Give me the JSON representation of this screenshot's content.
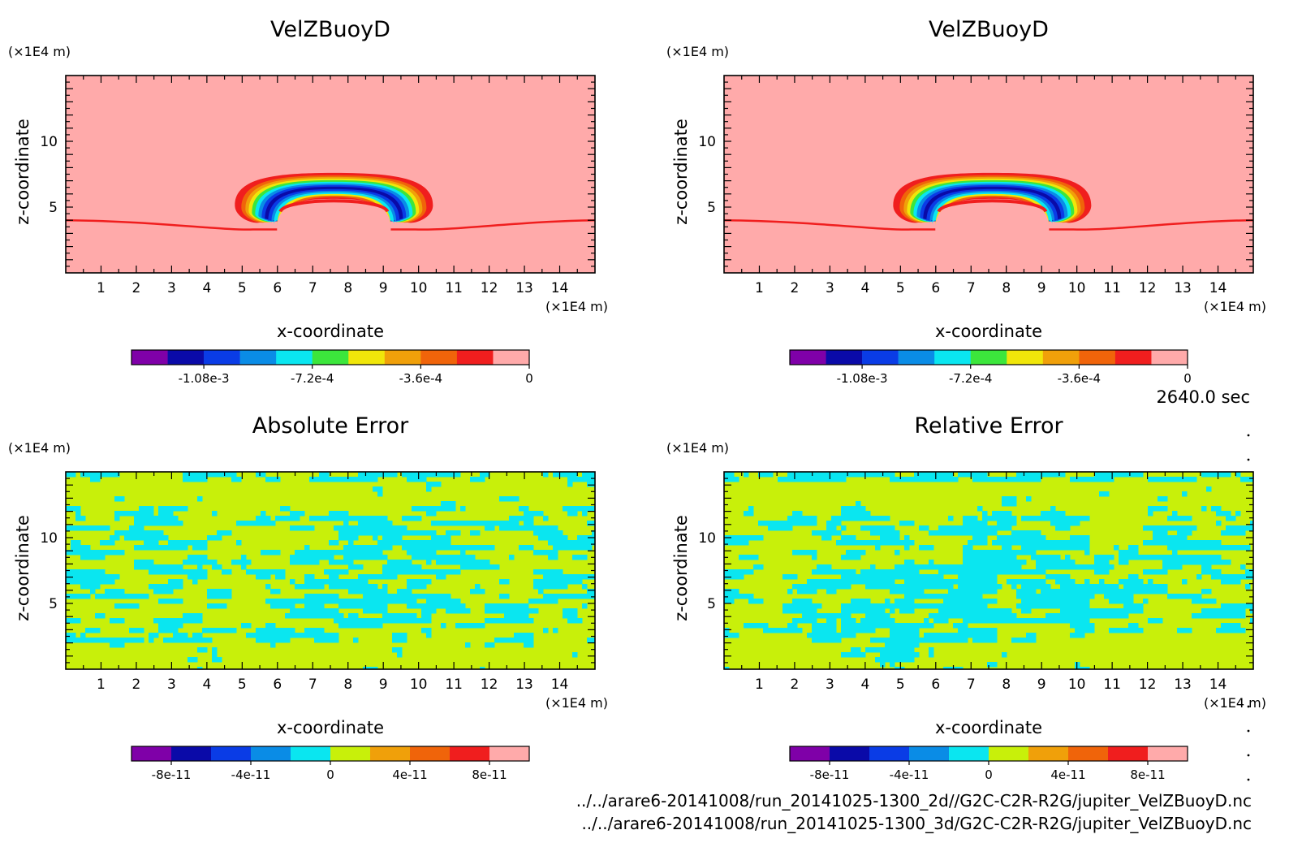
{
  "figure": {
    "time_label": "2640.0 sec",
    "file_line_1": "../../arare6-20141008/run_20141025-1300_2d//G2C-C2R-R2G/jupiter_VelZBuoyD.nc",
    "file_line_2": "../../arare6-20141008/run_20141025-1300_3d/G2C-C2R-R2G/jupiter_VelZBuoyD.nc",
    "colors": {
      "velz_levels": [
        "#7f00a8",
        "#0a0aa8",
        "#0a3ce6",
        "#0a8ce6",
        "#0ae6f0",
        "#3ce63c",
        "#f0e60a",
        "#f0a00a",
        "#f0640a",
        "#f01e1e",
        "#ffaaaa"
      ],
      "err_levels": [
        "#7f00a8",
        "#0a0aa8",
        "#0a3ce6",
        "#0a8ce6",
        "#0ae6f0",
        "#c8f00a",
        "#f0a00a",
        "#f0640a",
        "#f01e1e",
        "#ffaaaa"
      ]
    }
  },
  "chart_data": [
    {
      "type": "heatmap",
      "title": "VelZBuoyD",
      "xlabel": "x-coordinate",
      "ylabel": "z-coordinate",
      "x_unit": "(×1E4 m)",
      "y_unit": "(×1E4 m)",
      "xlim": [
        0,
        15
      ],
      "ylim": [
        0,
        15
      ],
      "x_ticks": [
        "1",
        "2",
        "3",
        "4",
        "5",
        "6",
        "7",
        "8",
        "9",
        "10",
        "11",
        "12",
        "13",
        "14"
      ],
      "y_ticks": [
        "5",
        "10"
      ],
      "colorbar": {
        "ticks": [
          "-1.08e-3",
          "-7.2e-4",
          "-3.6e-4",
          "0"
        ],
        "range": [
          -0.00132,
          0
        ]
      },
      "features": {
        "background": 0,
        "dome_center_x": 7.6,
        "dome_top_z": 7.6,
        "dome_base_z": 3.3,
        "min_value": -0.0012
      }
    },
    {
      "type": "heatmap",
      "title": "VelZBuoyD",
      "xlabel": "x-coordinate",
      "ylabel": "z-coordinate",
      "x_unit": "(×1E4 m)",
      "y_unit": "(×1E4 m)",
      "xlim": [
        0,
        15
      ],
      "ylim": [
        0,
        15
      ],
      "x_ticks": [
        "1",
        "2",
        "3",
        "4",
        "5",
        "6",
        "7",
        "8",
        "9",
        "10",
        "11",
        "12",
        "13",
        "14"
      ],
      "y_ticks": [
        "5",
        "10"
      ],
      "colorbar": {
        "ticks": [
          "-1.08e-3",
          "-7.2e-4",
          "-3.6e-4",
          "0"
        ],
        "range": [
          -0.00132,
          0
        ]
      },
      "features": {
        "background": 0,
        "dome_center_x": 7.6,
        "dome_top_z": 7.6,
        "dome_base_z": 3.3,
        "min_value": -0.0012
      }
    },
    {
      "type": "heatmap",
      "title": "Absolute Error",
      "xlabel": "x-coordinate",
      "ylabel": "z-coordinate",
      "x_unit": "(×1E4 m)",
      "y_unit": "(×1E4 m)",
      "xlim": [
        0,
        15
      ],
      "ylim": [
        0,
        15
      ],
      "x_ticks": [
        "1",
        "2",
        "3",
        "4",
        "5",
        "6",
        "7",
        "8",
        "9",
        "10",
        "11",
        "12",
        "13",
        "14"
      ],
      "y_ticks": [
        "5",
        "10"
      ],
      "colorbar": {
        "ticks": [
          "-8e-11",
          "-4e-11",
          "0",
          "4e-11",
          "8e-11"
        ],
        "range": [
          -1e-10,
          1e-10
        ]
      },
      "features": {
        "dominant_range": [
          0,
          2e-11
        ],
        "secondary_range": [
          -2e-11,
          0
        ]
      }
    },
    {
      "type": "heatmap",
      "title": "Relative Error",
      "xlabel": "x-coordinate",
      "ylabel": "z-coordinate",
      "x_unit": "(×1E4 m)",
      "y_unit": "(×1E4 m)",
      "xlim": [
        0,
        15
      ],
      "ylim": [
        0,
        15
      ],
      "x_ticks": [
        "1",
        "2",
        "3",
        "4",
        "5",
        "6",
        "7",
        "8",
        "9",
        "10",
        "11",
        "12",
        "13",
        "14"
      ],
      "y_ticks": [
        "5",
        "10"
      ],
      "colorbar": {
        "ticks": [
          "-8e-11",
          "-4e-11",
          "0",
          "4e-11",
          "8e-11"
        ],
        "range": [
          -1e-10,
          1e-10
        ]
      },
      "features": {
        "dominant_range": [
          0,
          2e-11
        ],
        "secondary_range": [
          -2e-11,
          0
        ]
      }
    }
  ]
}
